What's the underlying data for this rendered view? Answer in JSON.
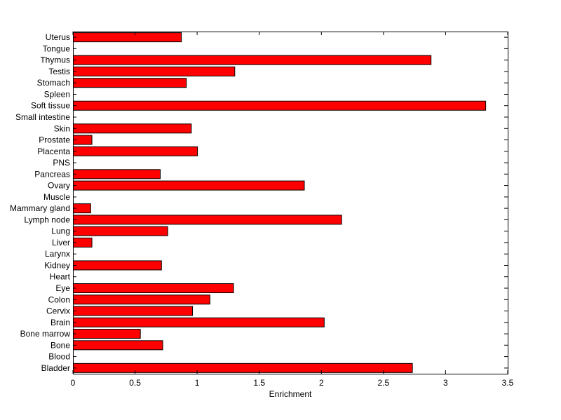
{
  "chart_data": {
    "type": "bar",
    "orientation": "horizontal",
    "title": "",
    "xlabel": "Enrichment",
    "ylabel": "",
    "xlim": [
      0,
      3.5
    ],
    "xticks": [
      "0",
      "0.5",
      "1",
      "1.5",
      "2",
      "2.5",
      "3",
      "3.5"
    ],
    "grid": false,
    "bar_color": "#ff0000",
    "categories": [
      "Uterus",
      "Tongue",
      "Thymus",
      "Testis",
      "Stomach",
      "Spleen",
      "Soft tissue",
      "Small intestine",
      "Skin",
      "Prostate",
      "Placenta",
      "PNS",
      "Pancreas",
      "Ovary",
      "Muscle",
      "Mammary gland",
      "Lymph node",
      "Lung",
      "Liver",
      "Larynx",
      "Kidney",
      "Heart",
      "Eye",
      "Colon",
      "Cervix",
      "Brain",
      "Bone marrow",
      "Bone",
      "Blood",
      "Bladder"
    ],
    "values": [
      0.87,
      0,
      2.88,
      1.3,
      0.91,
      0,
      3.32,
      0,
      0.95,
      0.15,
      1.0,
      0,
      0.7,
      1.86,
      0,
      0.14,
      2.16,
      0.76,
      0.15,
      0,
      0.71,
      0,
      1.29,
      1.1,
      0.96,
      2.02,
      0.54,
      0.72,
      0,
      2.73
    ]
  }
}
